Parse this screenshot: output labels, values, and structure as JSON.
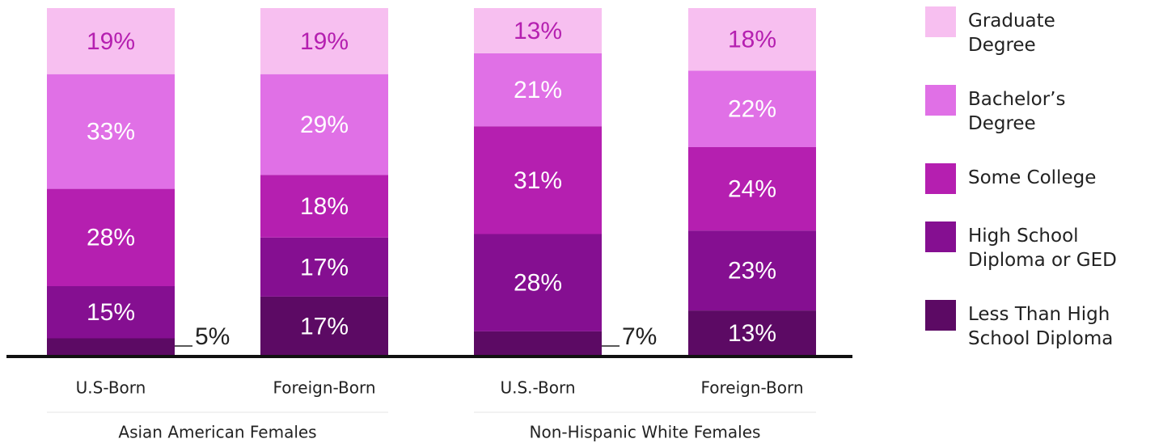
{
  "chart_data": {
    "type": "stacked-bar",
    "categories": [
      "U.S-Born",
      "Foreign-Born",
      "U.S.-Born",
      "Foreign-Born"
    ],
    "groups": [
      {
        "name": "Asian American Females"
      },
      {
        "name": "Non-Hispanic White Females"
      }
    ],
    "ylim": [
      0,
      100
    ],
    "series": [
      {
        "name": "Less Than High School Diploma",
        "color": "#5c0a64",
        "values": [
          5,
          17,
          7,
          13
        ],
        "value_labels": [
          "5%",
          "17%",
          "7%",
          "13%"
        ]
      },
      {
        "name": "High School Diploma or GED",
        "color": "#850f91",
        "values": [
          15,
          17,
          28,
          23
        ],
        "value_labels": [
          "15%",
          "17%",
          "28%",
          "23%"
        ]
      },
      {
        "name": "Some College",
        "color": "#b51fb0",
        "values": [
          28,
          18,
          31,
          24
        ],
        "value_labels": [
          "28%",
          "18%",
          "31%",
          "24%"
        ]
      },
      {
        "name": "Bachelor’s Degree",
        "color": "#e070e6",
        "values": [
          33,
          29,
          21,
          22
        ],
        "value_labels": [
          "33%",
          "29%",
          "21%",
          "22%"
        ]
      },
      {
        "name": "Graduate Degree",
        "color": "#f7bff0",
        "values": [
          19,
          19,
          13,
          18
        ],
        "value_labels": [
          "19%",
          "19%",
          "13%",
          "18%"
        ]
      }
    ]
  }
}
